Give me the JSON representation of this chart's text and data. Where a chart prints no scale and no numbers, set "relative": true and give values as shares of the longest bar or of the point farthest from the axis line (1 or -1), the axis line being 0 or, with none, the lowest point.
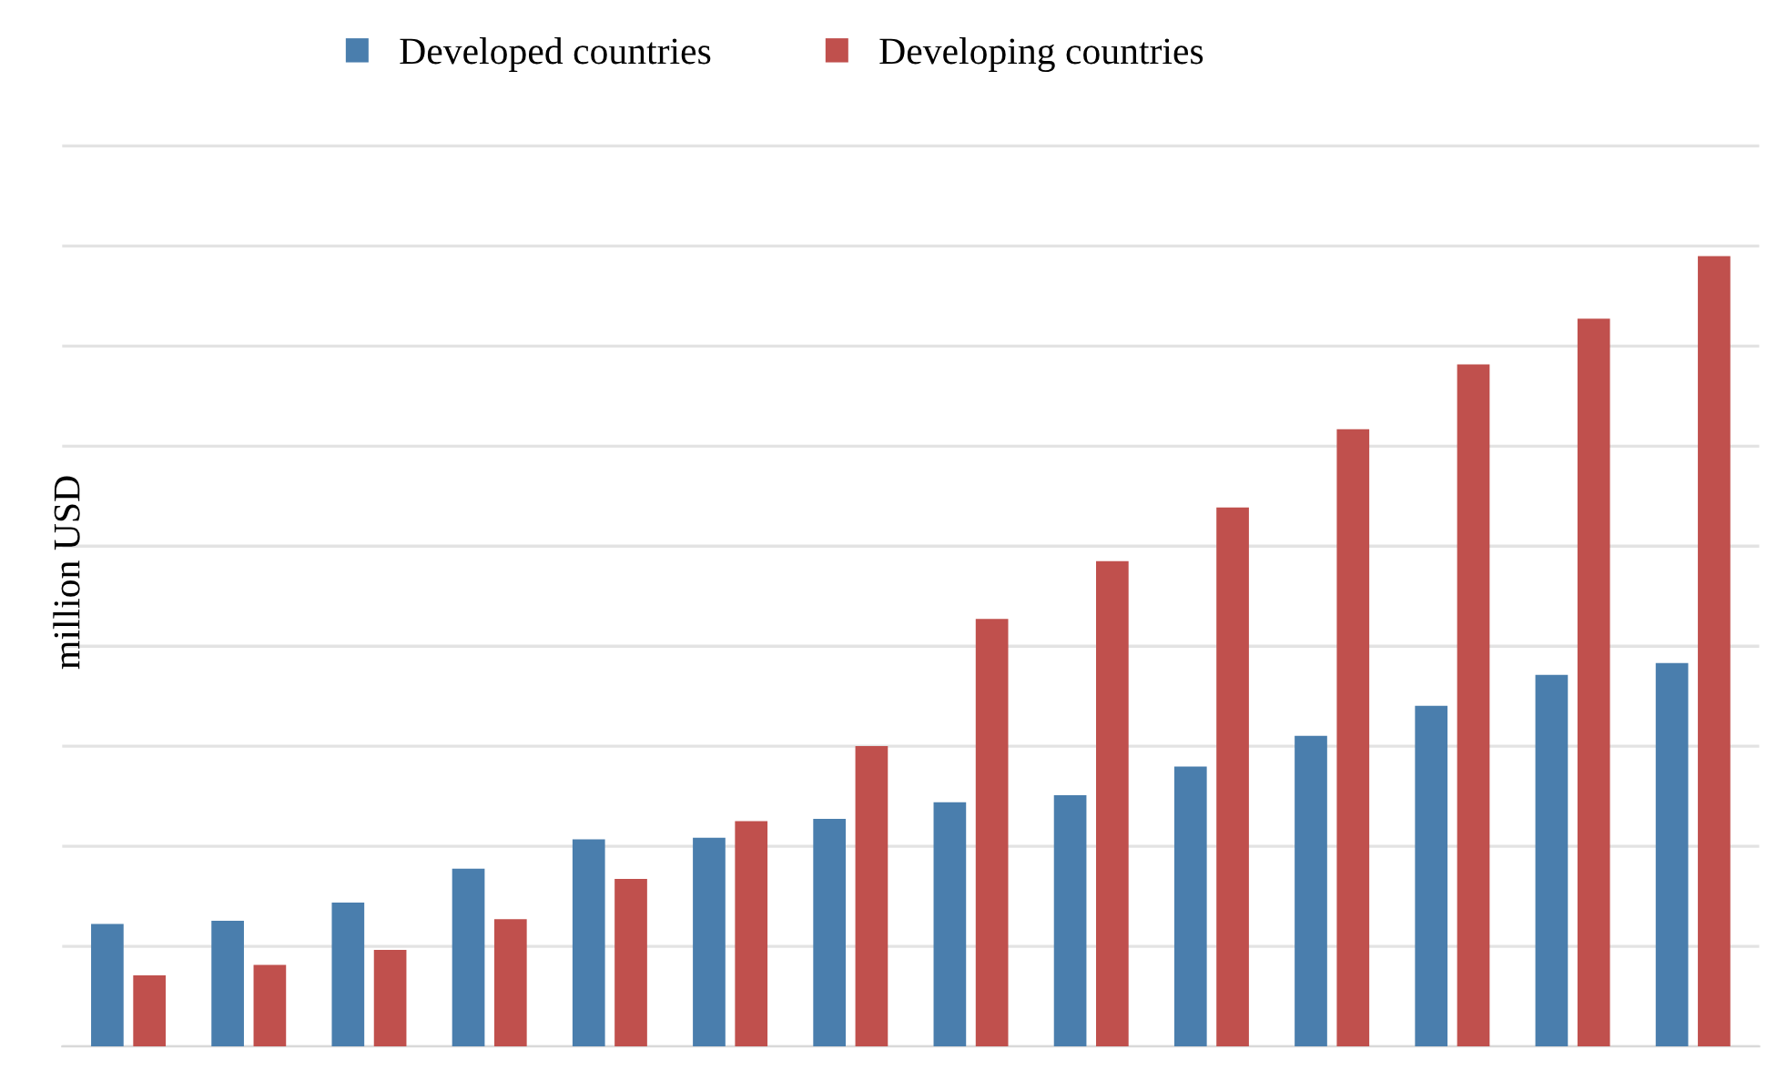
{
  "chart_data": {
    "type": "bar",
    "ylabel": "million USD",
    "relative": true,
    "categories": [
      null,
      null,
      null,
      null,
      null,
      null,
      null,
      null,
      null,
      null,
      null,
      null,
      null,
      null
    ],
    "series": [
      {
        "name": "Developed countries",
        "color": "#4a7ead",
        "values": [
          0.155,
          0.159,
          0.182,
          0.225,
          0.262,
          0.264,
          0.288,
          0.309,
          0.318,
          0.354,
          0.393,
          0.431,
          0.47,
          0.485
        ]
      },
      {
        "name": "Developing countries",
        "color": "#c0504d",
        "values": [
          0.09,
          0.103,
          0.122,
          0.161,
          0.212,
          0.285,
          0.38,
          0.541,
          0.614,
          0.682,
          0.781,
          0.863,
          0.921,
          1.0
        ]
      }
    ],
    "grid": "y",
    "legend": "top"
  }
}
